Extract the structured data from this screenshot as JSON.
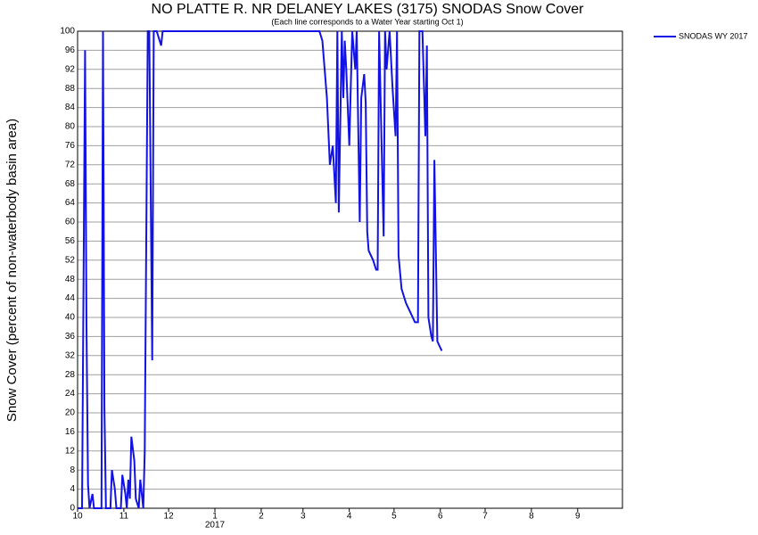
{
  "chart_data": {
    "type": "line",
    "title": "NO PLATTE R. NR DELANEY LAKES (3175) SNODAS Snow Cover",
    "subtitle": "(Each line corresponds to a Water Year starting Oct 1)",
    "y_label": "Snow Cover (percent of non-waterbody basin area)",
    "x_year_label": "2017",
    "x": [
      0,
      3,
      5,
      6,
      7,
      8,
      10,
      11,
      13,
      16,
      17,
      18,
      19,
      22,
      23,
      25,
      26,
      29,
      30,
      32,
      33,
      34,
      35,
      36,
      38,
      39,
      41,
      42,
      44,
      45,
      47,
      48,
      50,
      51,
      53,
      56,
      57,
      162,
      164,
      167,
      169,
      171,
      173,
      174,
      175,
      177,
      178,
      179,
      180,
      182,
      183,
      184,
      186,
      187,
      189,
      190,
      192,
      193,
      194,
      195,
      198,
      200,
      201,
      202,
      205,
      206,
      207,
      209,
      211,
      213,
      214,
      215,
      217,
      220,
      223,
      226,
      228,
      229,
      231,
      233,
      234,
      235,
      237,
      238,
      239,
      241,
      244
    ],
    "series": [
      {
        "name": "SNODAS WY 2017",
        "color": "#1212e6",
        "values": [
          0,
          0,
          96,
          38,
          5,
          0,
          3,
          0,
          0,
          0,
          100,
          21,
          0,
          0,
          8,
          4,
          0,
          0,
          7,
          3,
          0,
          6,
          2,
          15,
          10,
          2,
          0,
          6,
          0,
          12,
          100,
          100,
          31,
          100,
          100,
          97,
          100,
          100,
          98,
          86,
          72,
          76,
          64,
          100,
          62,
          100,
          86,
          98,
          92,
          76,
          88,
          100,
          92,
          100,
          60,
          86,
          91,
          85,
          58,
          54,
          52,
          50,
          50,
          100,
          57,
          100,
          92,
          100,
          88,
          78,
          100,
          53,
          46,
          43,
          41,
          39,
          39,
          100,
          100,
          78,
          97,
          40,
          36,
          35,
          73,
          35,
          33
        ]
      }
    ],
    "xlim": [
      0,
      365
    ],
    "xticks": [
      {
        "value": 0,
        "label": "10"
      },
      {
        "value": 31,
        "label": "11"
      },
      {
        "value": 61,
        "label": "12"
      },
      {
        "value": 92,
        "label": "1"
      },
      {
        "value": 123,
        "label": "2"
      },
      {
        "value": 151,
        "label": "3"
      },
      {
        "value": 182,
        "label": "4"
      },
      {
        "value": 212,
        "label": "5"
      },
      {
        "value": 243,
        "label": "6"
      },
      {
        "value": 273,
        "label": "7"
      },
      {
        "value": 304,
        "label": "8"
      },
      {
        "value": 335,
        "label": "9"
      }
    ],
    "ylim": [
      0,
      100
    ],
    "yticks": [
      0,
      4,
      8,
      12,
      16,
      20,
      24,
      28,
      32,
      36,
      40,
      44,
      48,
      52,
      56,
      60,
      64,
      68,
      72,
      76,
      80,
      84,
      88,
      92,
      96,
      100
    ],
    "grid": true,
    "legend": "top-right"
  }
}
